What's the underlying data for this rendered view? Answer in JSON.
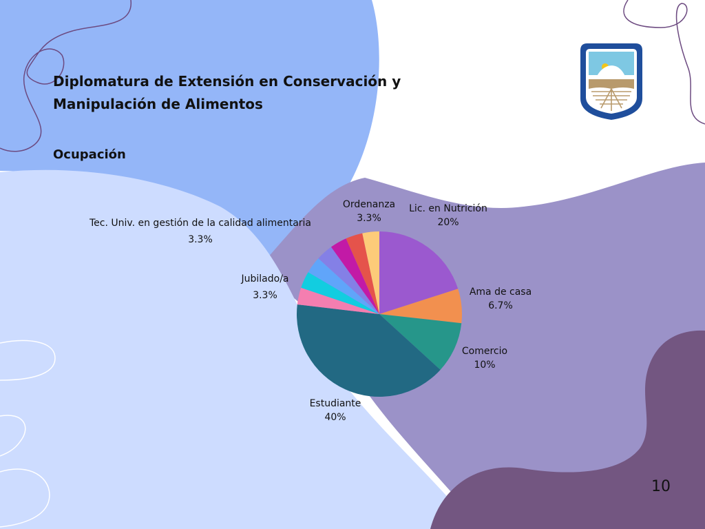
{
  "slide": {
    "title_line1": "Diplomatura de Extensión en Conservación y",
    "title_line2": "Manipulación de Alimentos",
    "subtitle": "Ocupación",
    "page_number": "10"
  },
  "theme": {
    "blue_shape": "#94b6f8",
    "light_blue_shape": "#cddcff",
    "lavender_shape": "#9b92c8",
    "dark_purple_shape": "#735681",
    "curve_line": "#6c4a80",
    "logo_blue": "#1f4e9c",
    "logo_sky": "#7ec8e3",
    "logo_sun": "#f4c518",
    "logo_earth": "#b89a6c"
  },
  "chart_data": {
    "type": "pie",
    "start": "12 o'clock, clockwise",
    "slices": [
      {
        "label": "Lic. en Nutrición",
        "value_label": "20%",
        "value": 20,
        "color": "#9b59cf"
      },
      {
        "label": "Ama de casa",
        "value_label": "6.7%",
        "value": 6.7,
        "color": "#f2904f"
      },
      {
        "label": "Comercio",
        "value_label": "10%",
        "value": 10,
        "color": "#26968a"
      },
      {
        "label": "Estudiante",
        "value_label": "40%",
        "value": 40,
        "color": "#226983"
      },
      {
        "label": "",
        "value_label": "",
        "value": 3.3,
        "color": "#f47eb0"
      },
      {
        "label": "",
        "value_label": "",
        "value": 3.3,
        "color": "#12cde0"
      },
      {
        "label": "Jubilado/a",
        "value_label": "3.3%",
        "value": 3.3,
        "color": "#60a5fa"
      },
      {
        "label": "",
        "value_label": "",
        "value": 3.3,
        "color": "#8480e6"
      },
      {
        "label": "Tec. Univ. en gestión de la calidad alimentaria",
        "value_label": "3.3%",
        "value": 3.3,
        "color": "#c21aa6"
      },
      {
        "label": "",
        "value_label": "",
        "value": 3.3,
        "color": "#e5534b"
      },
      {
        "label": "Ordenanza",
        "value_label": "3.3%",
        "value": 3.3,
        "color": "#fdcb79"
      }
    ]
  }
}
